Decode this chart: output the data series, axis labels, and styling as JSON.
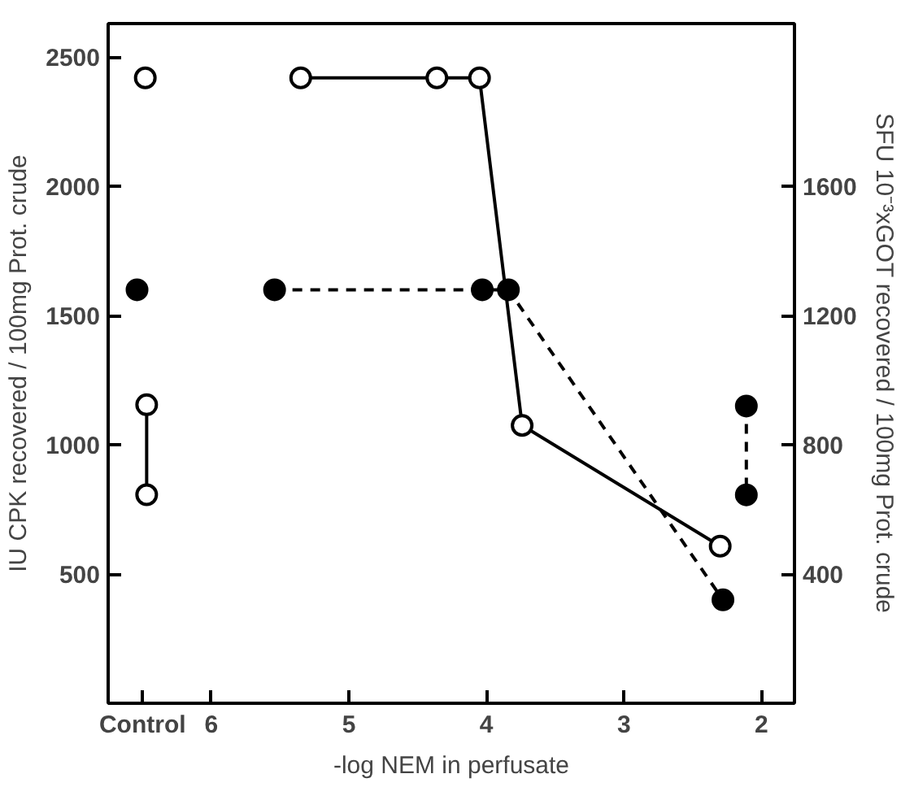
{
  "chart_data": {
    "type": "line",
    "xlabel": "-log NEM in perfusate",
    "ylabel": "IU CPK recovered / 100mg Prot. crude",
    "y2label": "SFU 10⁻³xGOT recovered / 100mg Prot. crude",
    "xlim": [
      6.75,
      1.76
    ],
    "xticks": [
      {
        "value": 6.5,
        "label": "Control"
      },
      6,
      5,
      4,
      3,
      2
    ],
    "ylim": [
      0,
      2630
    ],
    "yticks": [
      500,
      1000,
      1500,
      2000,
      2500
    ],
    "y2lim": [
      0,
      2104
    ],
    "y2ticks": [
      400,
      800,
      1200,
      1600
    ],
    "grid": false,
    "marker": "circle",
    "series": [
      {
        "color": "#000000",
        "line_style": "solid",
        "colors": [
          "#ffffff",
          null,
          "#ffffff",
          "#ffffff",
          "#ffffff",
          "#ffffff",
          "#ffffff"
        ],
        "x": [
          6.48,
          6.2,
          5.35,
          4.36,
          4.05,
          3.74,
          2.3
        ],
        "values": [
          2420,
          null,
          2420,
          2420,
          2420,
          1075,
          608
        ]
      },
      {
        "color": "#000000",
        "line_style": "solid",
        "colors": [
          "#ffffff",
          "#ffffff"
        ],
        "x": [
          6.47,
          6.47
        ],
        "values": [
          1155,
          807
        ]
      },
      {
        "color": "#000000",
        "line_style": "dashed",
        "colors": [
          "#000000",
          null,
          "#000000",
          "#000000",
          "#000000",
          "#000000"
        ],
        "axis": "y2",
        "x": [
          6.54,
          6.2,
          5.54,
          4.03,
          3.84,
          2.28
        ],
        "values": [
          1280,
          null,
          1280,
          1280,
          1280,
          320
        ]
      },
      {
        "color": "#000000",
        "line_style": "dashed",
        "colors": [
          "#000000",
          "#000000"
        ],
        "axis": "y2",
        "x": [
          2.11,
          2.11
        ],
        "values": [
          920,
          645
        ]
      }
    ]
  }
}
